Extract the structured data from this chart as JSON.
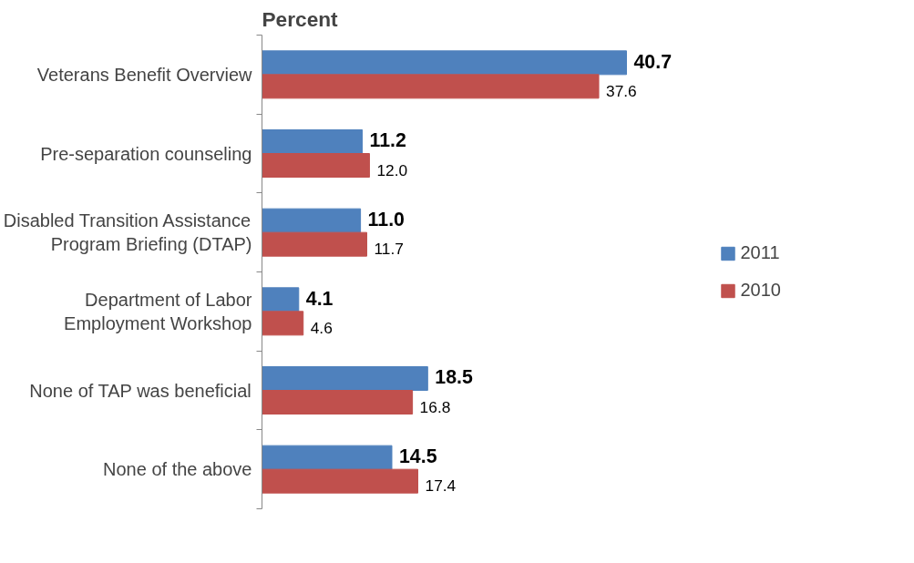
{
  "chart_data": {
    "type": "bar",
    "orientation": "horizontal",
    "title": "Percent",
    "categories": [
      "Veterans Benefit Overview",
      "Pre-separation counseling",
      "Disabled Transition Assistance\nProgram Briefing (DTAP)",
      "Department of Labor\nEmployment Workshop",
      "None of TAP was beneficial",
      "None of the above"
    ],
    "series": [
      {
        "name": "2011",
        "color": "#4f81bd",
        "values": [
          40.7,
          11.2,
          11.0,
          4.1,
          18.5,
          14.5
        ],
        "value_labels": [
          "40.7",
          "11.2",
          "11.0",
          "4.1",
          "18.5",
          "14.5"
        ]
      },
      {
        "name": "2010",
        "color": "#c0504d",
        "values": [
          37.6,
          12.0,
          11.7,
          4.6,
          16.8,
          17.4
        ],
        "value_labels": [
          "37.6",
          "12.0",
          "11.7",
          "4.6",
          "16.8",
          "17.4"
        ]
      }
    ],
    "data_labels": true,
    "grid": false,
    "legend": "right",
    "tick_labels": "y"
  }
}
